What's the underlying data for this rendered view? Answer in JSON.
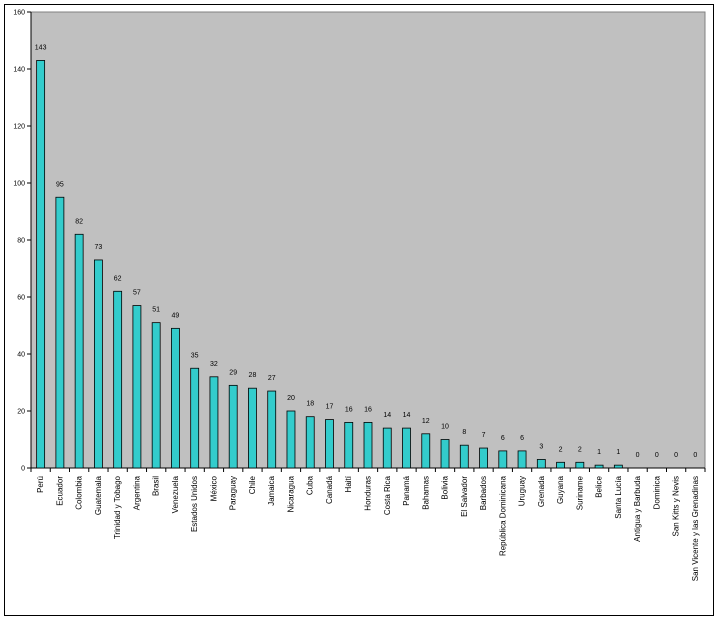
{
  "chart_data": {
    "type": "bar",
    "categories": [
      "Perú",
      "Ecuador",
      "Colombia",
      "Guatemala",
      "Trinidad y Tobago",
      "Argentina",
      "Brasil",
      "Venezuela",
      "Estados Unidos",
      "México",
      "Paraguay",
      "Chile",
      "Jamaica",
      "Nicaragua",
      "Cuba",
      "Canadá",
      "Haití",
      "Honduras",
      "Costa Rica",
      "Panamá",
      "Bahamas",
      "Bolivia",
      "El Salvador",
      "Barbados",
      "República Dominicana",
      "Uruguay",
      "Grenada",
      "Guyana",
      "Suriname",
      "Belice",
      "Santa Lucía",
      "Antigua y Barbuda",
      "Dominica",
      "San Kitts y Nevis",
      "San Vicente y las Grenadinas"
    ],
    "values": [
      143,
      95,
      82,
      73,
      62,
      57,
      51,
      49,
      35,
      32,
      29,
      28,
      27,
      20,
      18,
      17,
      16,
      16,
      14,
      14,
      12,
      10,
      8,
      7,
      6,
      6,
      3,
      2,
      2,
      1,
      1,
      0,
      0,
      0,
      0
    ],
    "ylim": [
      0,
      160
    ],
    "yticks": [
      0,
      20,
      40,
      60,
      80,
      100,
      120,
      140,
      160
    ],
    "grid": false,
    "colors": {
      "plot_bg": "#C0C0C0",
      "bar": "#33CCCC",
      "bar_edge": "#000000"
    }
  }
}
